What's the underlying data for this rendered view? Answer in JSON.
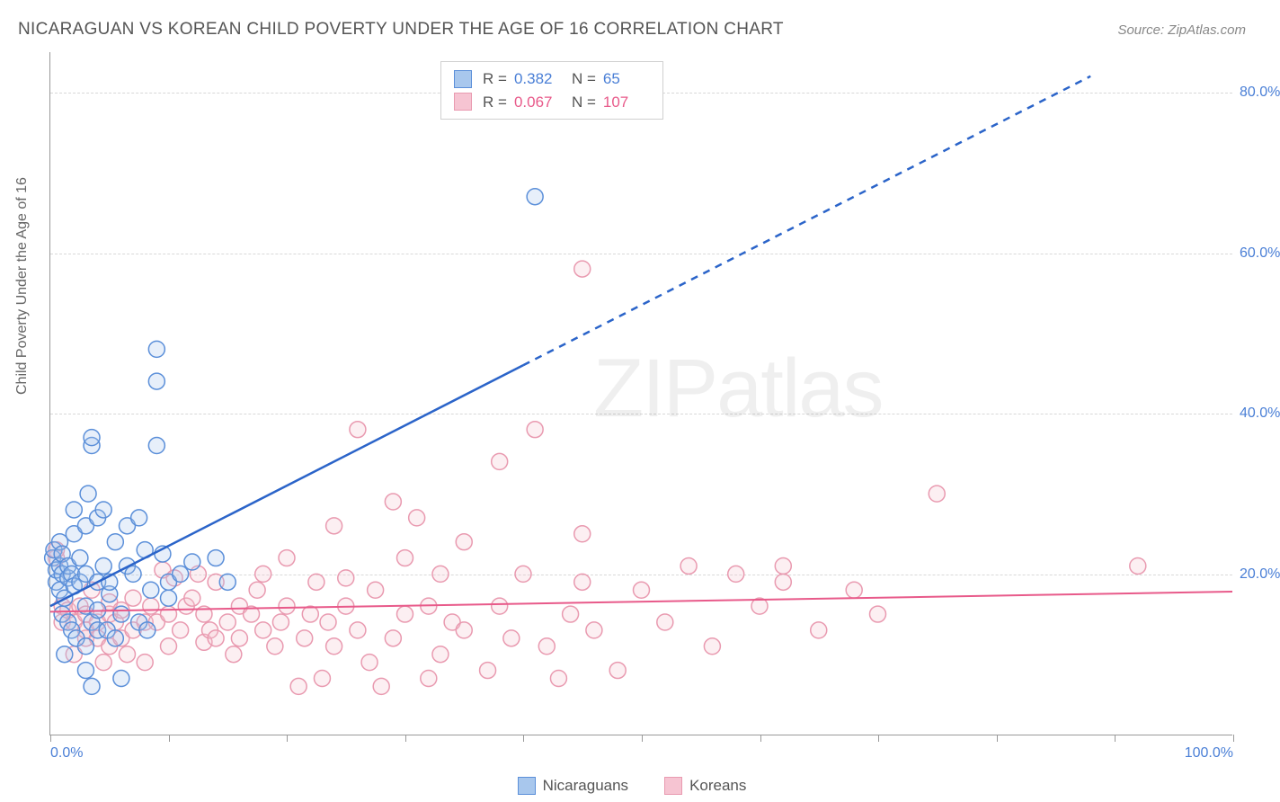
{
  "header": {
    "title": "NICARAGUAN VS KOREAN CHILD POVERTY UNDER THE AGE OF 16 CORRELATION CHART",
    "source": "Source: ZipAtlas.com"
  },
  "watermark": "ZIPatlas",
  "chart": {
    "type": "scatter",
    "y_axis_title": "Child Poverty Under the Age of 16",
    "xlim": [
      0,
      100
    ],
    "ylim": [
      0,
      85
    ],
    "x_ticks": [
      0,
      10,
      20,
      30,
      40,
      50,
      60,
      70,
      80,
      90,
      100
    ],
    "x_tick_labels": {
      "0": "0.0%",
      "100": "100.0%"
    },
    "y_gridlines": [
      20,
      40,
      60,
      80
    ],
    "y_tick_labels": {
      "20": "20.0%",
      "40": "40.0%",
      "60": "60.0%",
      "80": "80.0%"
    },
    "background_color": "#ffffff",
    "grid_color": "#d8d8d8",
    "axis_color": "#999999",
    "tick_label_color": "#4a7fd6",
    "axis_title_color": "#666666",
    "marker_radius": 9,
    "marker_stroke_width": 1.5,
    "marker_fill_opacity": 0.28,
    "series": {
      "nicaraguans": {
        "label": "Nicaraguans",
        "color_stroke": "#5b8fd9",
        "color_fill": "#a8c7ed",
        "R": "0.382",
        "N": "65",
        "stat_color": "#4a7fd6",
        "trend": {
          "x1": 0,
          "y1": 16,
          "x2": 40,
          "y2": 46,
          "dash_from_x": 40,
          "dash_to_x": 88,
          "dash_to_y": 82,
          "stroke": "#2b64c9",
          "width": 2.5
        },
        "points": [
          [
            0.2,
            22
          ],
          [
            0.3,
            23
          ],
          [
            0.5,
            19
          ],
          [
            0.5,
            20.5
          ],
          [
            0.8,
            18
          ],
          [
            0.8,
            21
          ],
          [
            0.8,
            24
          ],
          [
            1,
            15
          ],
          [
            1,
            20
          ],
          [
            1,
            22.5
          ],
          [
            1.2,
            10
          ],
          [
            1.2,
            17
          ],
          [
            1.5,
            14
          ],
          [
            1.5,
            19.5
          ],
          [
            1.5,
            21
          ],
          [
            1.8,
            13
          ],
          [
            1.8,
            20
          ],
          [
            2,
            18.5
          ],
          [
            2,
            25
          ],
          [
            2,
            28
          ],
          [
            2.2,
            12
          ],
          [
            2.5,
            19
          ],
          [
            2.5,
            22
          ],
          [
            3,
            8
          ],
          [
            3,
            11
          ],
          [
            3,
            16
          ],
          [
            3,
            20
          ],
          [
            3,
            26
          ],
          [
            3.2,
            30
          ],
          [
            3.5,
            6
          ],
          [
            3.5,
            14
          ],
          [
            3.5,
            36
          ],
          [
            3.5,
            37
          ],
          [
            4,
            13
          ],
          [
            4,
            15.5
          ],
          [
            4,
            19
          ],
          [
            4,
            27
          ],
          [
            4.5,
            28
          ],
          [
            4.5,
            21
          ],
          [
            4.8,
            13
          ],
          [
            5,
            17.5
          ],
          [
            5,
            19
          ],
          [
            5.5,
            12
          ],
          [
            5.5,
            24
          ],
          [
            6,
            7
          ],
          [
            6,
            15
          ],
          [
            6.5,
            26
          ],
          [
            6.5,
            21
          ],
          [
            7,
            20
          ],
          [
            7.5,
            14
          ],
          [
            7.5,
            27
          ],
          [
            8,
            23
          ],
          [
            8.2,
            13
          ],
          [
            8.5,
            18
          ],
          [
            9,
            36
          ],
          [
            9,
            48
          ],
          [
            9,
            44
          ],
          [
            9.5,
            22.5
          ],
          [
            10,
            17
          ],
          [
            10,
            19
          ],
          [
            11,
            20
          ],
          [
            12,
            21.5
          ],
          [
            14,
            22
          ],
          [
            15,
            19
          ],
          [
            41,
            67
          ]
        ]
      },
      "koreans": {
        "label": "Koreans",
        "color_stroke": "#e99ab0",
        "color_fill": "#f6c4d2",
        "R": "0.067",
        "N": "107",
        "stat_color": "#e85a8a",
        "trend": {
          "x1": 0,
          "y1": 15.3,
          "x2": 100,
          "y2": 17.8,
          "stroke": "#e85a8a",
          "width": 2
        },
        "points": [
          [
            0.5,
            22
          ],
          [
            0.5,
            23
          ],
          [
            1,
            14
          ],
          [
            1,
            16
          ],
          [
            1.5,
            15.5
          ],
          [
            2,
            10
          ],
          [
            2,
            14
          ],
          [
            2.5,
            16
          ],
          [
            3,
            12
          ],
          [
            3,
            13
          ],
          [
            3,
            15
          ],
          [
            3.5,
            18
          ],
          [
            4,
            12
          ],
          [
            4,
            14
          ],
          [
            4.5,
            9
          ],
          [
            5,
            11
          ],
          [
            5,
            15
          ],
          [
            5,
            16.5
          ],
          [
            5.5,
            14
          ],
          [
            6,
            12
          ],
          [
            6,
            15.5
          ],
          [
            6.5,
            10
          ],
          [
            7,
            13
          ],
          [
            7,
            17
          ],
          [
            8,
            9
          ],
          [
            8,
            14
          ],
          [
            8.5,
            16
          ],
          [
            9,
            14
          ],
          [
            9.5,
            20.5
          ],
          [
            10,
            11
          ],
          [
            10,
            15
          ],
          [
            10.5,
            19.5
          ],
          [
            11,
            13
          ],
          [
            11.5,
            16
          ],
          [
            12,
            17
          ],
          [
            12.5,
            20
          ],
          [
            13,
            11.5
          ],
          [
            13,
            15
          ],
          [
            13.5,
            13
          ],
          [
            14,
            12
          ],
          [
            14,
            19
          ],
          [
            15,
            14
          ],
          [
            15.5,
            10
          ],
          [
            16,
            16
          ],
          [
            16,
            12
          ],
          [
            17,
            15
          ],
          [
            17.5,
            18
          ],
          [
            18,
            13
          ],
          [
            18,
            20
          ],
          [
            19,
            11
          ],
          [
            19.5,
            14
          ],
          [
            20,
            16
          ],
          [
            20,
            22
          ],
          [
            21,
            6
          ],
          [
            21.5,
            12
          ],
          [
            22,
            15
          ],
          [
            22.5,
            19
          ],
          [
            23,
            7
          ],
          [
            23.5,
            14
          ],
          [
            24,
            26
          ],
          [
            24,
            11
          ],
          [
            25,
            16
          ],
          [
            25,
            19.5
          ],
          [
            26,
            13
          ],
          [
            26,
            38
          ],
          [
            27,
            9
          ],
          [
            27.5,
            18
          ],
          [
            28,
            6
          ],
          [
            29,
            29
          ],
          [
            29,
            12
          ],
          [
            30,
            15
          ],
          [
            30,
            22
          ],
          [
            31,
            27
          ],
          [
            32,
            7
          ],
          [
            32,
            16
          ],
          [
            33,
            10
          ],
          [
            33,
            20
          ],
          [
            34,
            14
          ],
          [
            35,
            13
          ],
          [
            35,
            24
          ],
          [
            37,
            8
          ],
          [
            38,
            16
          ],
          [
            38,
            34
          ],
          [
            39,
            12
          ],
          [
            40,
            20
          ],
          [
            41,
            38
          ],
          [
            42,
            11
          ],
          [
            43,
            7
          ],
          [
            44,
            15
          ],
          [
            45,
            19
          ],
          [
            45,
            25
          ],
          [
            45,
            58
          ],
          [
            46,
            13
          ],
          [
            48,
            8
          ],
          [
            50,
            18
          ],
          [
            52,
            14
          ],
          [
            54,
            21
          ],
          [
            56,
            11
          ],
          [
            58,
            20
          ],
          [
            60,
            16
          ],
          [
            62,
            19
          ],
          [
            62,
            21
          ],
          [
            65,
            13
          ],
          [
            68,
            18
          ],
          [
            70,
            15
          ],
          [
            75,
            30
          ],
          [
            92,
            21
          ]
        ]
      }
    },
    "legend_bottom": [
      "nicaraguans",
      "koreans"
    ]
  }
}
